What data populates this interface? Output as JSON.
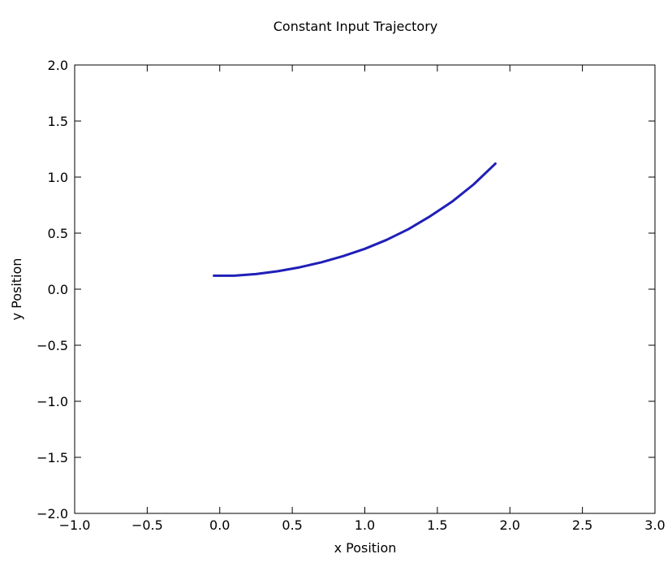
{
  "chart_data": {
    "type": "line",
    "title": "Constant Input Trajectory",
    "xlabel": "x Position",
    "ylabel": "y Position",
    "xlim": [
      -1.0,
      3.0
    ],
    "ylim": [
      -2.0,
      2.0
    ],
    "x_ticks": [
      "−1.0",
      "−0.5",
      "0.0",
      "0.5",
      "1.0",
      "1.5",
      "2.0",
      "2.5",
      "3.0"
    ],
    "y_ticks": [
      "2.0",
      "1.5",
      "1.0",
      "0.5",
      "0.0",
      "−0.5",
      "−1.0",
      "−1.5",
      "−2.0"
    ],
    "grid": false,
    "series": [
      {
        "color": "#1f1fb8",
        "x": [
          -0.04,
          0.1,
          0.25,
          0.4,
          0.55,
          0.7,
          0.85,
          1.0,
          1.15,
          1.3,
          1.45,
          1.6,
          1.75,
          1.9
        ],
        "y": [
          0.12,
          0.12,
          0.135,
          0.16,
          0.195,
          0.24,
          0.295,
          0.36,
          0.44,
          0.535,
          0.65,
          0.78,
          0.935,
          1.12
        ]
      }
    ]
  }
}
